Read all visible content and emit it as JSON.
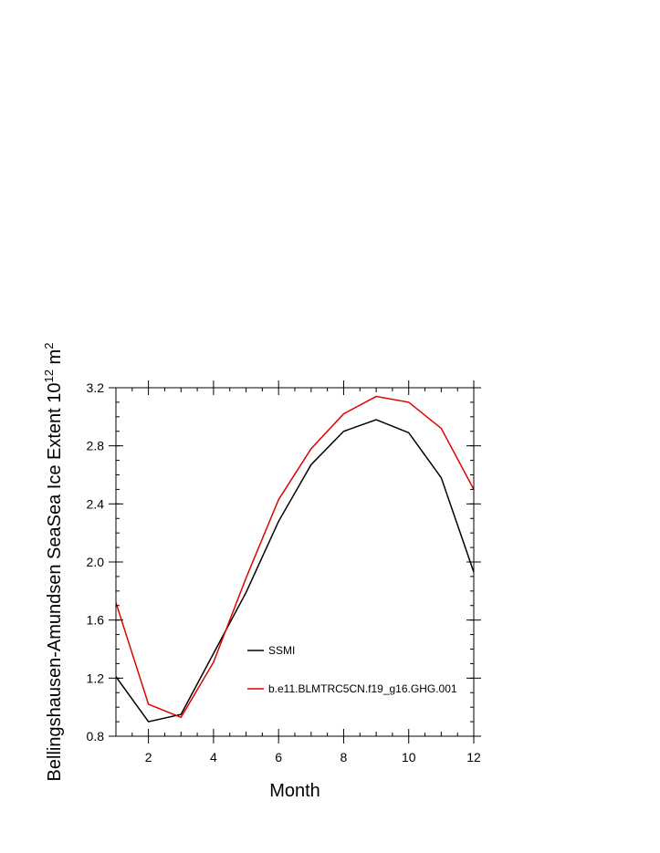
{
  "chart_data": {
    "type": "line",
    "xlabel": "Month",
    "ylabel_main": "Bellingshausen-Amundsen SeaSea Ice Extent 10",
    "ylabel_sup": "12",
    "ylabel_unit": " m",
    "ylabel_unit_sup": "2",
    "xlim": [
      1,
      12
    ],
    "ylim": [
      0.8,
      3.2
    ],
    "xticks": [
      2,
      4,
      6,
      8,
      10,
      12
    ],
    "xtick_labels": [
      "2",
      "4",
      "6",
      "8",
      "10",
      "12"
    ],
    "yticks": [
      0.8,
      1.2,
      1.6,
      2.0,
      2.4,
      2.8,
      3.2
    ],
    "ytick_labels": [
      "0.8",
      "1.2",
      "1.6",
      "2.0",
      "2.4",
      "2.8",
      "3.2"
    ],
    "grid": false,
    "legend_placement": "lower-right",
    "x": [
      1,
      2,
      3,
      4,
      5,
      6,
      7,
      8,
      9,
      10,
      11,
      12
    ],
    "series": [
      {
        "name": "SSMI",
        "color": "#000000",
        "values": [
          1.21,
          0.9,
          0.95,
          1.37,
          1.79,
          2.28,
          2.67,
          2.9,
          2.98,
          2.89,
          2.58,
          1.93
        ]
      },
      {
        "name": "b.e11.BLMTRC5CN.f19_g16.GHG.001",
        "color": "#e00000",
        "values": [
          1.72,
          1.02,
          0.93,
          1.31,
          1.89,
          2.43,
          2.78,
          3.02,
          3.14,
          3.1,
          2.92,
          2.5
        ]
      }
    ]
  }
}
